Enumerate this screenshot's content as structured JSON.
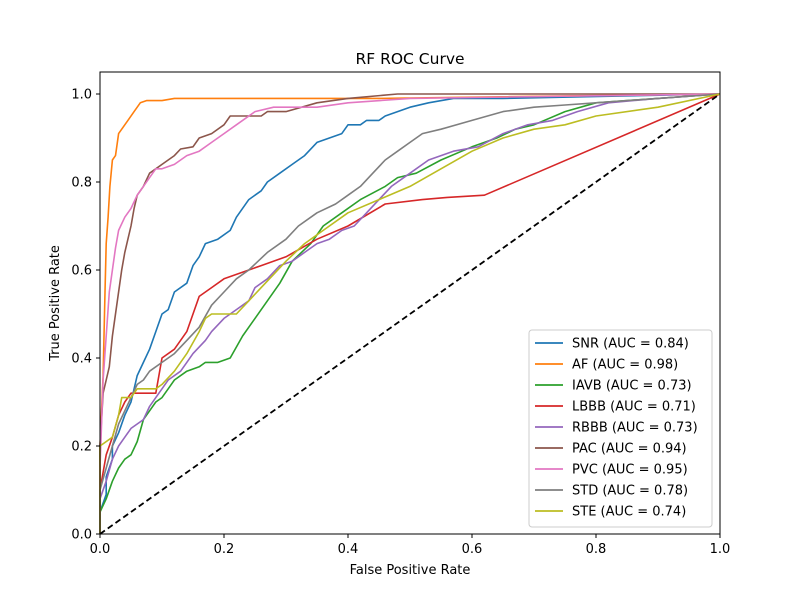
{
  "chart_data": {
    "type": "line",
    "title": "RF ROC Curve",
    "xlabel": "False Positive Rate",
    "ylabel": "True Positive Rate",
    "xlim": [
      0.0,
      1.0
    ],
    "ylim": [
      0.0,
      1.05
    ],
    "xticks": [
      0.0,
      0.2,
      0.4,
      0.6,
      0.8,
      1.0
    ],
    "yticks": [
      0.0,
      0.2,
      0.4,
      0.6,
      0.8,
      1.0
    ],
    "xtick_labels": [
      "0.0",
      "0.2",
      "0.4",
      "0.6",
      "0.8",
      "1.0"
    ],
    "ytick_labels": [
      "0.0",
      "0.2",
      "0.4",
      "0.6",
      "0.8",
      "1.0"
    ],
    "grid": false,
    "legend_position": "lower-right",
    "diagonal": {
      "color": "#000000",
      "style": "dashed",
      "points": [
        [
          0,
          0
        ],
        [
          1,
          1
        ]
      ]
    },
    "series": [
      {
        "name": "SNR (AUC = 0.84)",
        "color": "#1f77b4",
        "points": [
          [
            0,
            0
          ],
          [
            0,
            0.05
          ],
          [
            0.01,
            0.09
          ],
          [
            0.01,
            0.13
          ],
          [
            0.02,
            0.17
          ],
          [
            0.02,
            0.2
          ],
          [
            0.03,
            0.23
          ],
          [
            0.04,
            0.27
          ],
          [
            0.05,
            0.3
          ],
          [
            0.06,
            0.36
          ],
          [
            0.07,
            0.39
          ],
          [
            0.08,
            0.42
          ],
          [
            0.09,
            0.46
          ],
          [
            0.1,
            0.5
          ],
          [
            0.11,
            0.51
          ],
          [
            0.12,
            0.55
          ],
          [
            0.14,
            0.57
          ],
          [
            0.15,
            0.61
          ],
          [
            0.16,
            0.63
          ],
          [
            0.17,
            0.66
          ],
          [
            0.19,
            0.67
          ],
          [
            0.21,
            0.69
          ],
          [
            0.22,
            0.72
          ],
          [
            0.24,
            0.76
          ],
          [
            0.26,
            0.78
          ],
          [
            0.27,
            0.8
          ],
          [
            0.29,
            0.82
          ],
          [
            0.31,
            0.84
          ],
          [
            0.33,
            0.86
          ],
          [
            0.35,
            0.89
          ],
          [
            0.37,
            0.9
          ],
          [
            0.39,
            0.91
          ],
          [
            0.4,
            0.93
          ],
          [
            0.42,
            0.93
          ],
          [
            0.43,
            0.94
          ],
          [
            0.45,
            0.94
          ],
          [
            0.46,
            0.95
          ],
          [
            0.48,
            0.96
          ],
          [
            0.5,
            0.97
          ],
          [
            0.53,
            0.98
          ],
          [
            0.57,
            0.99
          ],
          [
            0.65,
            0.99
          ],
          [
            1,
            1
          ]
        ]
      },
      {
        "name": "AF (AUC = 0.98)",
        "color": "#ff7f0e",
        "points": [
          [
            0,
            0
          ],
          [
            0,
            0.2
          ],
          [
            0.005,
            0.36
          ],
          [
            0.008,
            0.55
          ],
          [
            0.01,
            0.66
          ],
          [
            0.013,
            0.72
          ],
          [
            0.016,
            0.79
          ],
          [
            0.02,
            0.85
          ],
          [
            0.025,
            0.86
          ],
          [
            0.03,
            0.91
          ],
          [
            0.035,
            0.92
          ],
          [
            0.045,
            0.94
          ],
          [
            0.055,
            0.96
          ],
          [
            0.065,
            0.98
          ],
          [
            0.075,
            0.985
          ],
          [
            0.1,
            0.985
          ],
          [
            0.12,
            0.99
          ],
          [
            0.2,
            0.99
          ],
          [
            0.45,
            0.99
          ],
          [
            1,
            1
          ]
        ]
      },
      {
        "name": "IAVB (AUC = 0.73)",
        "color": "#2ca02c",
        "points": [
          [
            0,
            0
          ],
          [
            0,
            0.05
          ],
          [
            0.01,
            0.08
          ],
          [
            0.02,
            0.12
          ],
          [
            0.03,
            0.15
          ],
          [
            0.04,
            0.17
          ],
          [
            0.05,
            0.18
          ],
          [
            0.06,
            0.21
          ],
          [
            0.07,
            0.26
          ],
          [
            0.08,
            0.28
          ],
          [
            0.09,
            0.3
          ],
          [
            0.1,
            0.31
          ],
          [
            0.11,
            0.33
          ],
          [
            0.12,
            0.35
          ],
          [
            0.14,
            0.37
          ],
          [
            0.16,
            0.38
          ],
          [
            0.17,
            0.39
          ],
          [
            0.19,
            0.39
          ],
          [
            0.21,
            0.4
          ],
          [
            0.23,
            0.45
          ],
          [
            0.25,
            0.49
          ],
          [
            0.27,
            0.53
          ],
          [
            0.29,
            0.57
          ],
          [
            0.31,
            0.62
          ],
          [
            0.34,
            0.66
          ],
          [
            0.36,
            0.7
          ],
          [
            0.39,
            0.73
          ],
          [
            0.42,
            0.76
          ],
          [
            0.46,
            0.79
          ],
          [
            0.48,
            0.81
          ],
          [
            0.51,
            0.82
          ],
          [
            0.55,
            0.85
          ],
          [
            0.6,
            0.88
          ],
          [
            0.64,
            0.9
          ],
          [
            0.67,
            0.92
          ],
          [
            0.7,
            0.93
          ],
          [
            0.75,
            0.96
          ],
          [
            0.8,
            0.98
          ],
          [
            1,
            1
          ]
        ]
      },
      {
        "name": "LBBB (AUC = 0.71)",
        "color": "#d62728",
        "points": [
          [
            0,
            0
          ],
          [
            0,
            0.1
          ],
          [
            0.01,
            0.18
          ],
          [
            0.02,
            0.22
          ],
          [
            0.03,
            0.27
          ],
          [
            0.04,
            0.3
          ],
          [
            0.05,
            0.32
          ],
          [
            0.09,
            0.32
          ],
          [
            0.1,
            0.4
          ],
          [
            0.12,
            0.42
          ],
          [
            0.14,
            0.46
          ],
          [
            0.16,
            0.54
          ],
          [
            0.18,
            0.56
          ],
          [
            0.2,
            0.58
          ],
          [
            0.22,
            0.59
          ],
          [
            0.26,
            0.61
          ],
          [
            0.3,
            0.63
          ],
          [
            0.35,
            0.67
          ],
          [
            0.4,
            0.7
          ],
          [
            0.46,
            0.75
          ],
          [
            0.52,
            0.76
          ],
          [
            0.56,
            0.765
          ],
          [
            0.62,
            0.77
          ],
          [
            1,
            1
          ]
        ]
      },
      {
        "name": "RBBB (AUC = 0.73)",
        "color": "#9467bd",
        "points": [
          [
            0,
            0
          ],
          [
            0,
            0.08
          ],
          [
            0.01,
            0.12
          ],
          [
            0.02,
            0.17
          ],
          [
            0.03,
            0.2
          ],
          [
            0.04,
            0.22
          ],
          [
            0.05,
            0.24
          ],
          [
            0.07,
            0.26
          ],
          [
            0.08,
            0.29
          ],
          [
            0.09,
            0.31
          ],
          [
            0.1,
            0.33
          ],
          [
            0.11,
            0.35
          ],
          [
            0.13,
            0.37
          ],
          [
            0.14,
            0.39
          ],
          [
            0.15,
            0.41
          ],
          [
            0.17,
            0.44
          ],
          [
            0.18,
            0.46
          ],
          [
            0.2,
            0.49
          ],
          [
            0.22,
            0.51
          ],
          [
            0.24,
            0.53
          ],
          [
            0.25,
            0.56
          ],
          [
            0.27,
            0.58
          ],
          [
            0.29,
            0.61
          ],
          [
            0.31,
            0.62
          ],
          [
            0.33,
            0.64
          ],
          [
            0.35,
            0.66
          ],
          [
            0.37,
            0.67
          ],
          [
            0.39,
            0.69
          ],
          [
            0.41,
            0.7
          ],
          [
            0.43,
            0.73
          ],
          [
            0.45,
            0.76
          ],
          [
            0.47,
            0.79
          ],
          [
            0.5,
            0.82
          ],
          [
            0.53,
            0.85
          ],
          [
            0.57,
            0.87
          ],
          [
            0.61,
            0.88
          ],
          [
            0.65,
            0.91
          ],
          [
            0.69,
            0.93
          ],
          [
            0.73,
            0.94
          ],
          [
            0.77,
            0.96
          ],
          [
            0.82,
            0.98
          ],
          [
            0.9,
            0.99
          ],
          [
            1,
            1
          ]
        ]
      },
      {
        "name": "PAC (AUC = 0.94)",
        "color": "#8c564b",
        "points": [
          [
            0,
            0
          ],
          [
            0,
            0.2
          ],
          [
            0.005,
            0.32
          ],
          [
            0.01,
            0.35
          ],
          [
            0.015,
            0.38
          ],
          [
            0.02,
            0.45
          ],
          [
            0.025,
            0.5
          ],
          [
            0.03,
            0.55
          ],
          [
            0.035,
            0.6
          ],
          [
            0.04,
            0.64
          ],
          [
            0.05,
            0.7
          ],
          [
            0.055,
            0.74
          ],
          [
            0.06,
            0.77
          ],
          [
            0.07,
            0.79
          ],
          [
            0.08,
            0.82
          ],
          [
            0.09,
            0.83
          ],
          [
            0.1,
            0.84
          ],
          [
            0.11,
            0.85
          ],
          [
            0.12,
            0.86
          ],
          [
            0.13,
            0.875
          ],
          [
            0.15,
            0.88
          ],
          [
            0.16,
            0.9
          ],
          [
            0.18,
            0.91
          ],
          [
            0.2,
            0.93
          ],
          [
            0.21,
            0.95
          ],
          [
            0.26,
            0.95
          ],
          [
            0.27,
            0.96
          ],
          [
            0.3,
            0.96
          ],
          [
            0.35,
            0.98
          ],
          [
            0.4,
            0.99
          ],
          [
            0.48,
            1
          ],
          [
            1,
            1
          ]
        ]
      },
      {
        "name": "PVC (AUC = 0.95)",
        "color": "#e377c2",
        "points": [
          [
            0,
            0
          ],
          [
            0,
            0.15
          ],
          [
            0.005,
            0.35
          ],
          [
            0.01,
            0.45
          ],
          [
            0.015,
            0.55
          ],
          [
            0.02,
            0.6
          ],
          [
            0.025,
            0.65
          ],
          [
            0.03,
            0.69
          ],
          [
            0.04,
            0.72
          ],
          [
            0.05,
            0.74
          ],
          [
            0.06,
            0.77
          ],
          [
            0.07,
            0.79
          ],
          [
            0.08,
            0.81
          ],
          [
            0.09,
            0.83
          ],
          [
            0.1,
            0.83
          ],
          [
            0.12,
            0.84
          ],
          [
            0.14,
            0.86
          ],
          [
            0.16,
            0.87
          ],
          [
            0.18,
            0.89
          ],
          [
            0.2,
            0.91
          ],
          [
            0.22,
            0.93
          ],
          [
            0.25,
            0.96
          ],
          [
            0.28,
            0.97
          ],
          [
            0.35,
            0.97
          ],
          [
            0.4,
            0.98
          ],
          [
            0.5,
            0.99
          ],
          [
            1,
            1
          ]
        ]
      },
      {
        "name": "STD (AUC = 0.78)",
        "color": "#7f7f7f",
        "points": [
          [
            0,
            0
          ],
          [
            0,
            0.1
          ],
          [
            0.01,
            0.15
          ],
          [
            0.02,
            0.2
          ],
          [
            0.03,
            0.25
          ],
          [
            0.04,
            0.28
          ],
          [
            0.05,
            0.31
          ],
          [
            0.06,
            0.34
          ],
          [
            0.07,
            0.35
          ],
          [
            0.08,
            0.37
          ],
          [
            0.1,
            0.39
          ],
          [
            0.12,
            0.41
          ],
          [
            0.14,
            0.44
          ],
          [
            0.16,
            0.47
          ],
          [
            0.18,
            0.52
          ],
          [
            0.2,
            0.55
          ],
          [
            0.22,
            0.58
          ],
          [
            0.24,
            0.6
          ],
          [
            0.27,
            0.64
          ],
          [
            0.3,
            0.67
          ],
          [
            0.32,
            0.7
          ],
          [
            0.35,
            0.73
          ],
          [
            0.38,
            0.75
          ],
          [
            0.4,
            0.77
          ],
          [
            0.42,
            0.79
          ],
          [
            0.44,
            0.82
          ],
          [
            0.46,
            0.85
          ],
          [
            0.48,
            0.87
          ],
          [
            0.5,
            0.89
          ],
          [
            0.52,
            0.91
          ],
          [
            0.55,
            0.92
          ],
          [
            0.6,
            0.94
          ],
          [
            0.65,
            0.96
          ],
          [
            0.7,
            0.97
          ],
          [
            0.75,
            0.975
          ],
          [
            0.8,
            0.98
          ],
          [
            0.9,
            0.99
          ],
          [
            1,
            1
          ]
        ]
      },
      {
        "name": "STE (AUC = 0.74)",
        "color": "#bcbd22",
        "points": [
          [
            0,
            0
          ],
          [
            0,
            0.2
          ],
          [
            0.02,
            0.22
          ],
          [
            0.03,
            0.27
          ],
          [
            0.035,
            0.31
          ],
          [
            0.05,
            0.31
          ],
          [
            0.06,
            0.33
          ],
          [
            0.09,
            0.33
          ],
          [
            0.1,
            0.34
          ],
          [
            0.12,
            0.37
          ],
          [
            0.14,
            0.41
          ],
          [
            0.16,
            0.46
          ],
          [
            0.17,
            0.49
          ],
          [
            0.18,
            0.5
          ],
          [
            0.2,
            0.5
          ],
          [
            0.22,
            0.5
          ],
          [
            0.24,
            0.53
          ],
          [
            0.26,
            0.56
          ],
          [
            0.28,
            0.59
          ],
          [
            0.3,
            0.62
          ],
          [
            0.33,
            0.66
          ],
          [
            0.36,
            0.69
          ],
          [
            0.4,
            0.73
          ],
          [
            0.45,
            0.76
          ],
          [
            0.5,
            0.79
          ],
          [
            0.55,
            0.83
          ],
          [
            0.6,
            0.87
          ],
          [
            0.65,
            0.9
          ],
          [
            0.7,
            0.92
          ],
          [
            0.75,
            0.93
          ],
          [
            0.8,
            0.95
          ],
          [
            0.9,
            0.97
          ],
          [
            1,
            1
          ]
        ]
      }
    ]
  }
}
